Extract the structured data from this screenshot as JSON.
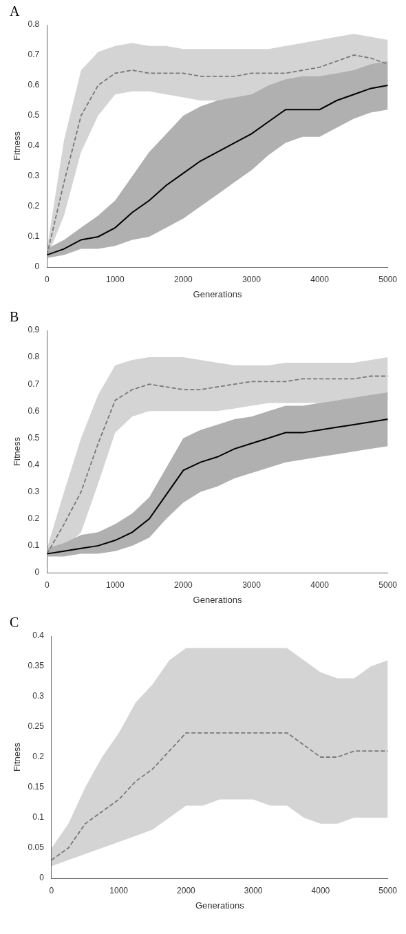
{
  "chart_data": [
    {
      "type": "line",
      "title": "A",
      "xlabel": "Generations",
      "ylabel": "Fitness",
      "x": [
        0,
        250,
        500,
        750,
        1000,
        1250,
        1500,
        1750,
        2000,
        2250,
        2500,
        2750,
        3000,
        3250,
        3500,
        3750,
        4000,
        4250,
        4500,
        4750,
        5000
      ],
      "xlim": [
        0,
        5000
      ],
      "xticks": [
        0,
        1000,
        2000,
        3000,
        4000,
        5000
      ],
      "ylim": [
        0.0,
        0.8
      ],
      "yticks": [
        0.0,
        0.1,
        0.2,
        0.3,
        0.4,
        0.5,
        0.6,
        0.7,
        0.8
      ],
      "grid": false,
      "series": [
        {
          "type": "band",
          "color": "#d4d4d4",
          "lower": [
            0.03,
            0.17,
            0.38,
            0.5,
            0.57,
            0.58,
            0.58,
            0.57,
            0.56,
            0.55,
            0.55,
            0.55,
            0.56,
            0.56,
            0.56,
            0.57,
            0.58,
            0.6,
            0.63,
            0.62,
            0.61
          ],
          "upper": [
            0.06,
            0.42,
            0.65,
            0.71,
            0.73,
            0.74,
            0.73,
            0.73,
            0.72,
            0.72,
            0.72,
            0.72,
            0.72,
            0.72,
            0.73,
            0.74,
            0.75,
            0.76,
            0.77,
            0.76,
            0.75
          ]
        },
        {
          "type": "band",
          "color": "#b0b0b0",
          "lower": [
            0.03,
            0.04,
            0.06,
            0.06,
            0.07,
            0.09,
            0.1,
            0.13,
            0.16,
            0.2,
            0.24,
            0.28,
            0.32,
            0.37,
            0.41,
            0.43,
            0.43,
            0.46,
            0.49,
            0.51,
            0.52
          ],
          "upper": [
            0.06,
            0.09,
            0.13,
            0.17,
            0.22,
            0.3,
            0.38,
            0.44,
            0.5,
            0.53,
            0.55,
            0.56,
            0.57,
            0.6,
            0.62,
            0.63,
            0.63,
            0.64,
            0.65,
            0.67,
            0.68
          ]
        },
        {
          "type": "line",
          "line_style": "dashed",
          "color": "#777777",
          "values": [
            0.04,
            0.28,
            0.5,
            0.6,
            0.64,
            0.65,
            0.64,
            0.64,
            0.64,
            0.63,
            0.63,
            0.63,
            0.64,
            0.64,
            0.64,
            0.65,
            0.66,
            0.68,
            0.7,
            0.69,
            0.67
          ]
        },
        {
          "type": "line",
          "line_style": "solid",
          "color": "#000000",
          "values": [
            0.04,
            0.06,
            0.09,
            0.1,
            0.13,
            0.18,
            0.22,
            0.27,
            0.31,
            0.35,
            0.38,
            0.41,
            0.44,
            0.48,
            0.52,
            0.52,
            0.52,
            0.55,
            0.57,
            0.59,
            0.6
          ]
        }
      ]
    },
    {
      "type": "line",
      "title": "B",
      "xlabel": "Generations",
      "ylabel": "Fitness",
      "x": [
        0,
        250,
        500,
        750,
        1000,
        1250,
        1500,
        1750,
        2000,
        2250,
        2500,
        2750,
        3000,
        3250,
        3500,
        3750,
        4000,
        4250,
        4500,
        4750,
        5000
      ],
      "xlim": [
        0,
        5000
      ],
      "xticks": [
        0,
        1000,
        2000,
        3000,
        4000,
        5000
      ],
      "ylim": [
        0.0,
        0.9
      ],
      "yticks": [
        0.0,
        0.1,
        0.2,
        0.3,
        0.4,
        0.5,
        0.6,
        0.7,
        0.8,
        0.9
      ],
      "grid": false,
      "series": [
        {
          "type": "band",
          "color": "#d4d4d4",
          "lower": [
            0.06,
            0.09,
            0.15,
            0.33,
            0.52,
            0.58,
            0.6,
            0.6,
            0.6,
            0.6,
            0.6,
            0.61,
            0.62,
            0.63,
            0.63,
            0.63,
            0.63,
            0.64,
            0.64,
            0.65,
            0.65
          ],
          "upper": [
            0.09,
            0.3,
            0.5,
            0.66,
            0.77,
            0.79,
            0.8,
            0.8,
            0.8,
            0.79,
            0.78,
            0.77,
            0.77,
            0.77,
            0.78,
            0.78,
            0.78,
            0.78,
            0.78,
            0.79,
            0.8
          ]
        },
        {
          "type": "band",
          "color": "#b0b0b0",
          "lower": [
            0.06,
            0.06,
            0.07,
            0.07,
            0.08,
            0.1,
            0.13,
            0.2,
            0.26,
            0.3,
            0.32,
            0.35,
            0.37,
            0.39,
            0.41,
            0.42,
            0.43,
            0.44,
            0.45,
            0.46,
            0.47
          ],
          "upper": [
            0.09,
            0.11,
            0.14,
            0.15,
            0.18,
            0.22,
            0.28,
            0.39,
            0.5,
            0.53,
            0.55,
            0.57,
            0.58,
            0.6,
            0.62,
            0.62,
            0.63,
            0.64,
            0.65,
            0.66,
            0.67
          ]
        },
        {
          "type": "line",
          "line_style": "dashed",
          "color": "#777777",
          "values": [
            0.07,
            0.18,
            0.3,
            0.48,
            0.64,
            0.68,
            0.7,
            0.69,
            0.68,
            0.68,
            0.69,
            0.7,
            0.71,
            0.71,
            0.71,
            0.72,
            0.72,
            0.72,
            0.72,
            0.73,
            0.73
          ]
        },
        {
          "type": "line",
          "line_style": "solid",
          "color": "#000000",
          "values": [
            0.07,
            0.08,
            0.09,
            0.1,
            0.12,
            0.15,
            0.2,
            0.29,
            0.38,
            0.41,
            0.43,
            0.46,
            0.48,
            0.5,
            0.52,
            0.52,
            0.53,
            0.54,
            0.55,
            0.56,
            0.57
          ]
        }
      ]
    },
    {
      "type": "line",
      "title": "C",
      "xlabel": "Generations",
      "ylabel": "Fitness",
      "x": [
        0,
        250,
        500,
        750,
        1000,
        1250,
        1500,
        1750,
        2000,
        2250,
        2500,
        2750,
        3000,
        3250,
        3500,
        3750,
        4000,
        4250,
        4500,
        4750,
        5000
      ],
      "xlim": [
        0,
        5000
      ],
      "xticks": [
        0,
        1000,
        2000,
        3000,
        4000,
        5000
      ],
      "ylim": [
        0.0,
        0.4
      ],
      "yticks": [
        0.0,
        0.05,
        0.1,
        0.15,
        0.2,
        0.25,
        0.3,
        0.35,
        0.4
      ],
      "grid": false,
      "series": [
        {
          "type": "band",
          "color": "#d4d4d4",
          "lower": [
            0.02,
            0.03,
            0.04,
            0.05,
            0.06,
            0.07,
            0.08,
            0.1,
            0.12,
            0.12,
            0.13,
            0.13,
            0.13,
            0.12,
            0.12,
            0.1,
            0.09,
            0.09,
            0.1,
            0.1,
            0.1
          ],
          "upper": [
            0.05,
            0.09,
            0.15,
            0.2,
            0.24,
            0.29,
            0.32,
            0.36,
            0.38,
            0.38,
            0.38,
            0.38,
            0.38,
            0.38,
            0.38,
            0.36,
            0.34,
            0.33,
            0.33,
            0.35,
            0.36
          ]
        },
        {
          "type": "line",
          "line_style": "dashed",
          "color": "#777777",
          "values": [
            0.03,
            0.05,
            0.09,
            0.11,
            0.13,
            0.16,
            0.18,
            0.21,
            0.24,
            0.24,
            0.24,
            0.24,
            0.24,
            0.24,
            0.24,
            0.22,
            0.2,
            0.2,
            0.21,
            0.21,
            0.21
          ]
        }
      ]
    }
  ]
}
